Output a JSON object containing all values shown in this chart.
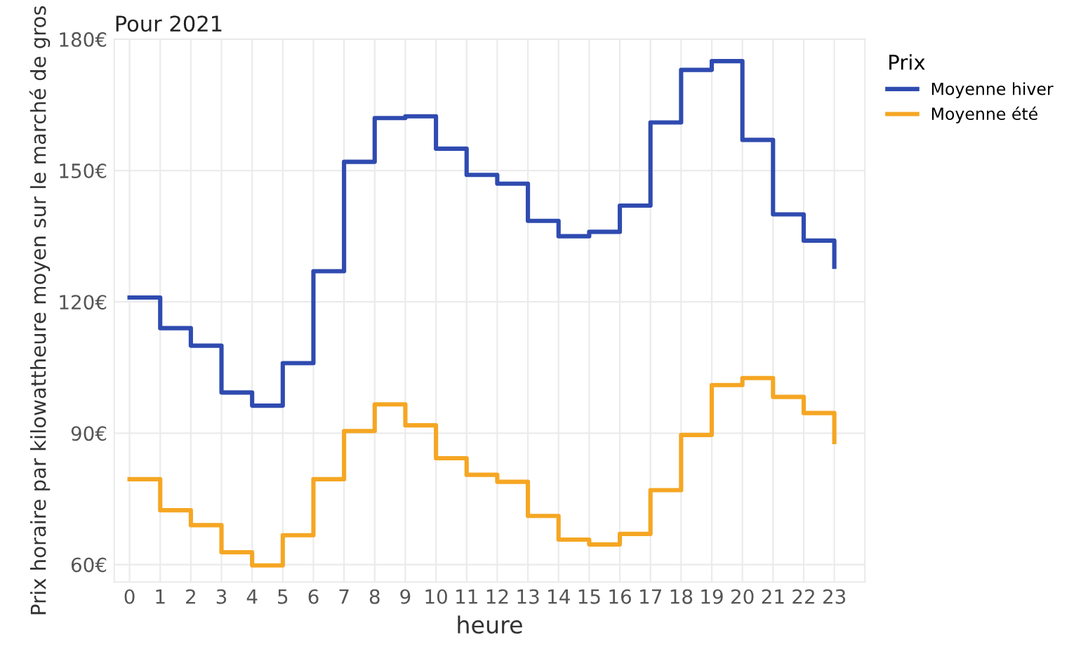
{
  "chart_data": {
    "type": "step",
    "title": "Pour 2021",
    "xlabel": "heure",
    "ylabel": "Prix horaire par kilowattheure moyen sur le marché de gros",
    "legend_title": "Prix",
    "x": [
      0,
      1,
      2,
      3,
      4,
      5,
      6,
      7,
      8,
      9,
      10,
      11,
      12,
      13,
      14,
      15,
      16,
      17,
      18,
      19,
      20,
      21,
      22,
      23
    ],
    "series": [
      {
        "name": "Moyenne hiver",
        "color": "#2f4bb0",
        "values": [
          121,
          114,
          110,
          99.3,
          96.3,
          106,
          127,
          152,
          162,
          162.4,
          155,
          149,
          147,
          138.5,
          135,
          136,
          142,
          161,
          173,
          175,
          157,
          140,
          134,
          128
        ]
      },
      {
        "name": "Moyenne été",
        "color": "#f5a623",
        "values": [
          79.5,
          72.4,
          69,
          62.8,
          59.8,
          66.7,
          79.5,
          90.5,
          96.6,
          91.8,
          84.3,
          80.5,
          78.9,
          71.1,
          65.7,
          64.6,
          67,
          77,
          89.6,
          101,
          102.6,
          98.3,
          94.6,
          88
        ]
      }
    ],
    "xlim": [
      -0.5,
      24
    ],
    "xticks": [
      0,
      1,
      2,
      3,
      4,
      5,
      6,
      7,
      8,
      9,
      10,
      11,
      12,
      13,
      14,
      15,
      16,
      17,
      18,
      19,
      20,
      21,
      22,
      23
    ],
    "ylim": [
      56,
      180
    ],
    "yticks": [
      {
        "value": 60,
        "label": "60€"
      },
      {
        "value": 90,
        "label": "90€"
      },
      {
        "value": 120,
        "label": "120€"
      },
      {
        "value": 150,
        "label": "150€"
      },
      {
        "value": 180,
        "label": "180€"
      }
    ],
    "grid": true,
    "legend": "top right",
    "line_style": "solid",
    "marker": "none"
  }
}
